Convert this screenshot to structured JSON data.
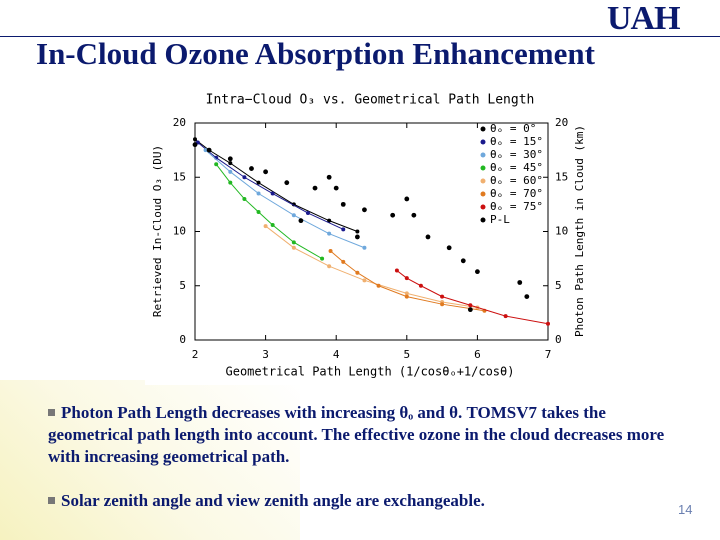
{
  "slide": {
    "title": "In-Cloud Ozone Absorption Enhancement",
    "logo": "UAH",
    "bullets": [
      "Photon Path Length decreases with increasing θₒ and θ. TOMSV7 takes the geometrical path length into account. The effective ozone in the cloud decreases more with increasing geometrical path.",
      "Solar zenith angle and view zenith angle are exchangeable."
    ],
    "page_number": "14"
  },
  "chart_data": {
    "type": "line",
    "title": "Intra−Cloud O₃ vs. Geometrical Path Length",
    "x_label": "Geometrical Path Length (1/cosθₒ+1/cosθ)",
    "y_label": "Retrieved In-Cloud O₃ (DU)",
    "y2_label": "Photon Path Length in Cloud (km)",
    "xlim": [
      2,
      7
    ],
    "xticks": [
      2,
      3,
      4,
      5,
      6,
      7
    ],
    "ylim": [
      0,
      20
    ],
    "yticks": [
      0,
      5,
      10,
      15,
      20
    ],
    "y2lim": [
      0,
      20
    ],
    "y2ticks": [
      0,
      5,
      10,
      15,
      20
    ],
    "legend": "upper right",
    "series": [
      {
        "name": "θₒ = 0°",
        "color": "#000000",
        "x": [
          2,
          2.2,
          2.5,
          2.9,
          3.4,
          3.9,
          4.3
        ],
        "values": [
          18.5,
          17.5,
          16.3,
          14.5,
          12.5,
          11,
          10
        ]
      },
      {
        "name": "θₒ = 15°",
        "color": "#1a1a8c",
        "x": [
          2.04,
          2.3,
          2.7,
          3.1,
          3.6,
          4.1
        ],
        "values": [
          18.2,
          16.8,
          15,
          13.5,
          11.7,
          10.2
        ]
      },
      {
        "name": "θₒ = 30°",
        "color": "#6fa8dc",
        "x": [
          2.15,
          2.5,
          2.9,
          3.4,
          3.9,
          4.4
        ],
        "values": [
          17.5,
          15.5,
          13.5,
          11.5,
          9.8,
          8.5
        ]
      },
      {
        "name": "θₒ = 45°",
        "color": "#22b822",
        "x": [
          2.3,
          2.5,
          2.7,
          2.9,
          3.1,
          3.4,
          3.8
        ],
        "values": [
          16.2,
          14.5,
          13,
          11.8,
          10.6,
          9,
          7.5
        ]
      },
      {
        "name": "θₒ = 60°",
        "color": "#f0b070",
        "x": [
          3,
          3.4,
          3.9,
          4.4,
          5,
          5.5,
          6
        ],
        "values": [
          10.5,
          8.5,
          6.8,
          5.5,
          4.3,
          3.5,
          3
        ]
      },
      {
        "name": "θₒ = 70°",
        "color": "#e07a20",
        "x": [
          3.92,
          4.1,
          4.3,
          4.6,
          5,
          5.5,
          6.1
        ],
        "values": [
          8.2,
          7.2,
          6.2,
          5,
          4,
          3.3,
          2.7
        ]
      },
      {
        "name": "θₒ = 75°",
        "color": "#cc1010",
        "x": [
          4.86,
          5,
          5.2,
          5.5,
          5.9,
          6.4,
          7
        ],
        "values": [
          6.4,
          5.7,
          5,
          4,
          3.2,
          2.2,
          1.5
        ]
      },
      {
        "name": "P-L",
        "color": "#000000",
        "axis": "y2",
        "line": false,
        "x": [
          2,
          2.2,
          2.5,
          2.8,
          3,
          3.3,
          3.5,
          3.7,
          3.9,
          4,
          4.1,
          4.3,
          4.4,
          4.8,
          5,
          5.1,
          5.3,
          5.6,
          5.8,
          6,
          6.6,
          6.7,
          5.9
        ],
        "values": [
          18,
          17.5,
          16.7,
          15.8,
          15.5,
          14.5,
          11,
          14,
          15,
          14,
          12.5,
          9.5,
          12,
          11.5,
          13,
          11.5,
          9.5,
          8.5,
          7.3,
          6.3,
          5.3,
          4,
          2.8
        ]
      }
    ]
  }
}
